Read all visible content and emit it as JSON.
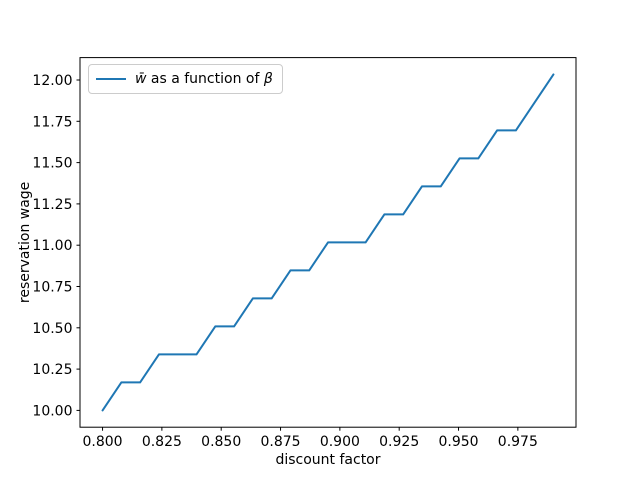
{
  "chart_data": {
    "type": "line",
    "title": "",
    "xlabel": "discount factor",
    "ylabel": "reservation wage",
    "grid": false,
    "legend": {
      "position": "upper left",
      "label_prefix": "w̄",
      "label_mid": " as a function of ",
      "label_suffix": "β",
      "full_label": "w̄ as a function of β"
    },
    "x": [
      0.8,
      0.80792,
      0.81583,
      0.82375,
      0.83167,
      0.83958,
      0.8475,
      0.85542,
      0.86333,
      0.87125,
      0.87917,
      0.88708,
      0.895,
      0.90292,
      0.91083,
      0.91875,
      0.92667,
      0.93458,
      0.9425,
      0.95042,
      0.95833,
      0.96625,
      0.97417,
      0.98208,
      0.99
    ],
    "series": [
      {
        "name": "w̄ as a function of β",
        "color": "#1f77b4",
        "values": [
          10.0,
          10.1695,
          10.1695,
          10.339,
          10.339,
          10.339,
          10.5085,
          10.5085,
          10.678,
          10.678,
          10.8475,
          10.8475,
          11.0169,
          11.0169,
          11.0169,
          11.1864,
          11.1864,
          11.3559,
          11.3559,
          11.5254,
          11.5254,
          11.6949,
          11.6949,
          11.8644,
          12.0339
        ]
      }
    ],
    "xlim": [
      0.7905,
      0.9995
    ],
    "ylim": [
      9.89831,
      12.13559
    ],
    "xticks": {
      "values": [
        0.8,
        0.825,
        0.85,
        0.875,
        0.9,
        0.925,
        0.95,
        0.975
      ],
      "labels": [
        "0.800",
        "0.825",
        "0.850",
        "0.875",
        "0.900",
        "0.925",
        "0.950",
        "0.975"
      ]
    },
    "yticks": {
      "values": [
        10.0,
        10.25,
        10.5,
        10.75,
        11.0,
        11.25,
        11.5,
        11.75,
        12.0
      ],
      "labels": [
        "10.00",
        "10.25",
        "10.50",
        "10.75",
        "11.00",
        "11.25",
        "11.50",
        "11.75",
        "12.00"
      ]
    }
  },
  "colors": {
    "line": "#1f77b4",
    "spine": "#000000",
    "text": "#000000",
    "legend_border": "#cccccc",
    "background": "#ffffff"
  }
}
